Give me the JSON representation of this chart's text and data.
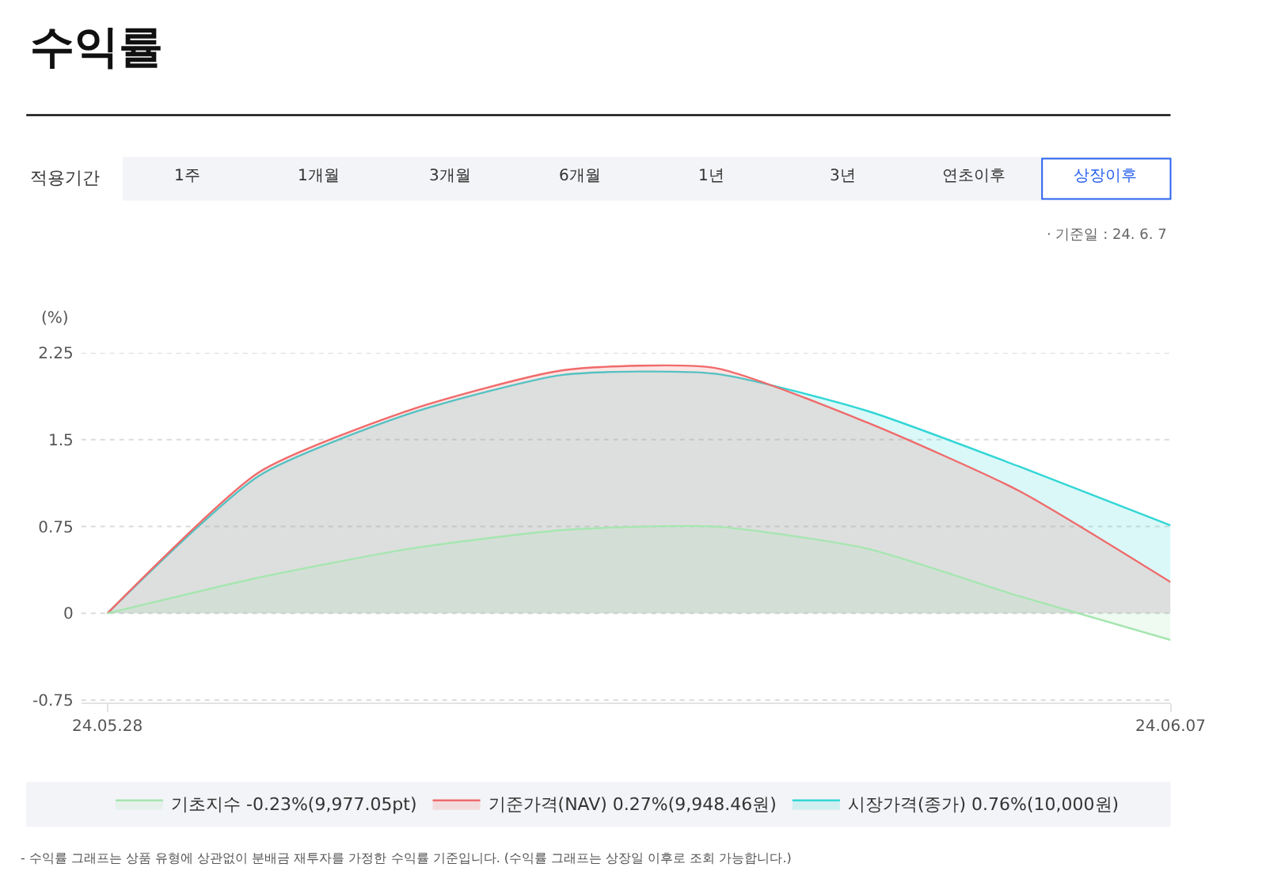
{
  "chart_data": {
    "type": "area",
    "title": "수익률",
    "ylabel": "(%)",
    "categories": [
      "24.05.28",
      null,
      null,
      null,
      null,
      null,
      null,
      "24.06.07"
    ],
    "series": [
      {
        "name": "시장가격(종가) 0.76%(10,000원)",
        "color": "#33d6d6",
        "values": [
          0,
          1.19,
          1.73,
          2.06,
          2.07,
          1.75,
          1.27,
          0.76
        ]
      },
      {
        "name": "기준가격(NAV) 0.27%(9,948.46원)",
        "color": "#f06a6a",
        "values": [
          0,
          1.22,
          1.76,
          2.1,
          2.12,
          1.65,
          1.06,
          0.27
        ]
      },
      {
        "name": "기초지수 -0.23%(9,977.05pt)",
        "color": "#a6e6b0",
        "values": [
          0,
          0.31,
          0.56,
          0.72,
          0.75,
          0.56,
          0.15,
          -0.23
        ]
      }
    ],
    "ylim": [
      -0.77,
      2.25
    ],
    "yticks": [
      -0.75,
      0,
      0.75,
      1.5,
      2.25
    ],
    "grid": "y",
    "legend": "bottom",
    "annotations": [
      "적용기간",
      "1주",
      "1개월",
      "3개월",
      "6개월",
      "1년",
      "3년",
      "연초이후",
      "상장이후",
      "· 기준일 : 24. 6. 7",
      "- 수익률 그래프는 상품 유형에 상관없이 분배금 재투자를 가정한 수익률 기준입니다. (수익률 그래프는 상장일 이후로 조회 가능합니다.)"
    ]
  }
}
